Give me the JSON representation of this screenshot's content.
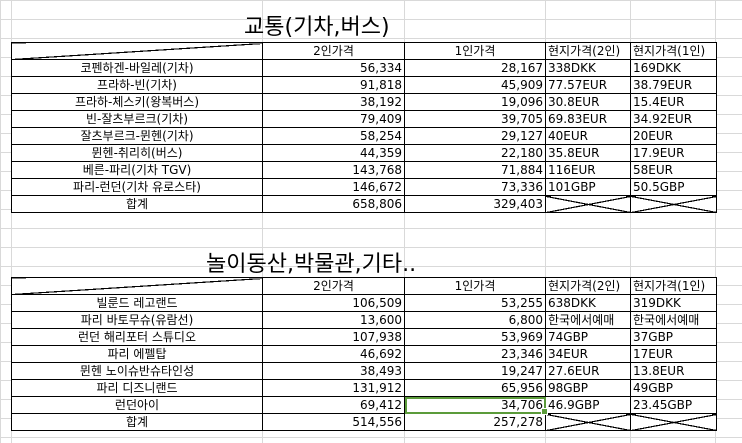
{
  "transport": {
    "title": "교통(기차,버스)",
    "headers": [
      "",
      "2인가격",
      "1인가격",
      "현지가격(2인)",
      "현지가격(1인)"
    ],
    "rows": [
      {
        "name": "코펜하겐-바일레(기차)",
        "p2": "56,334",
        "p1": "28,167",
        "l2": "338DKK",
        "l1": "169DKK"
      },
      {
        "name": "프라하-빈(기차)",
        "p2": "91,818",
        "p1": "45,909",
        "l2": "77.57EUR",
        "l1": "38.79EUR"
      },
      {
        "name": "프라하-체스키(왕복버스)",
        "p2": "38,192",
        "p1": "19,096",
        "l2": "30.8EUR",
        "l1": "15.4EUR"
      },
      {
        "name": "빈-잘츠부르크(기차)",
        "p2": "79,409",
        "p1": "39,705",
        "l2": "69.83EUR",
        "l1": "34.92EUR"
      },
      {
        "name": "잘츠부르크-뮌헨(기차)",
        "p2": "58,254",
        "p1": "29,127",
        "l2": "40EUR",
        "l1": "20EUR"
      },
      {
        "name": "뮌헨-취리히(버스)",
        "p2": "44,359",
        "p1": "22,180",
        "l2": "35.8EUR",
        "l1": "17.9EUR"
      },
      {
        "name": "베른-파리(기차 TGV)",
        "p2": "143,768",
        "p1": "71,884",
        "l2": "116EUR",
        "l1": "58EUR"
      },
      {
        "name": "파리-런던(기차 유로스타)",
        "p2": "146,672",
        "p1": "73,336",
        "l2": "101GBP",
        "l1": "50.5GBP"
      }
    ],
    "total": {
      "name": "합계",
      "p2": "658,806",
      "p1": "329,403"
    }
  },
  "attractions": {
    "title": "놀이동산,박물관,기타..",
    "headers": [
      "",
      "2인가격",
      "1인가격",
      "현지가격(2인)",
      "현지가격(1인)"
    ],
    "rows": [
      {
        "name": "빌룬드 레고랜드",
        "p2": "106,509",
        "p1": "53,255",
        "l2": "638DKK",
        "l1": "319DKK"
      },
      {
        "name": "파리 바토무슈(유람선)",
        "p2": "13,600",
        "p1": "6,800",
        "l2": "한국에서예매",
        "l1": "한국에서예매"
      },
      {
        "name": "런던 해리포터 스튜디오",
        "p2": "107,938",
        "p1": "53,969",
        "l2": "74GBP",
        "l1": "37GBP"
      },
      {
        "name": "파리 에펠탑",
        "p2": "46,692",
        "p1": "23,346",
        "l2": "34EUR",
        "l1": "17EUR"
      },
      {
        "name": "뮌헨 노이슈반슈타인성",
        "p2": "38,493",
        "p1": "19,247",
        "l2": "27.6EUR",
        "l1": "13.8EUR"
      },
      {
        "name": "파리 디즈니랜드",
        "p2": "131,912",
        "p1": "65,956",
        "l2": "98GBP",
        "l1": "49GBP"
      },
      {
        "name": "런던아이",
        "p2": "69,412",
        "p1": "34,706",
        "l2": "46.9GBP",
        "l1": "23.45GBP"
      }
    ],
    "total": {
      "name": "합계",
      "p2": "514,556",
      "p1": "257,278"
    }
  }
}
